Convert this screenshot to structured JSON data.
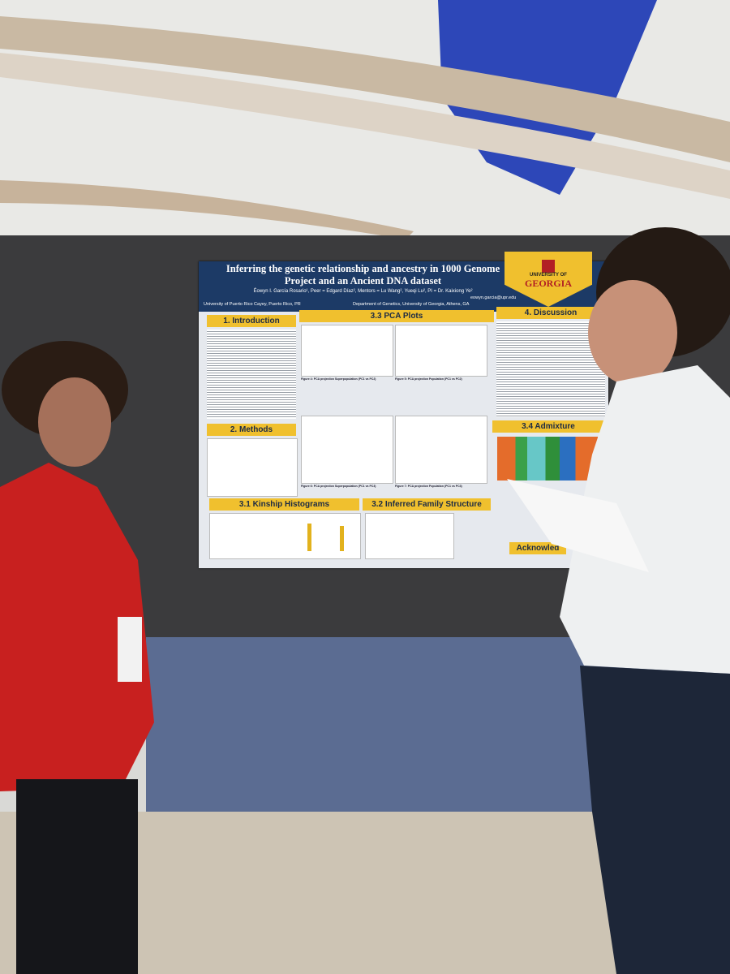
{
  "poster": {
    "title": "Inferring the genetic relationship and ancestry in 1000 Genome Project and an Ancient DNA dataset",
    "authors": "Éowyn I. García Rosario¹, Peer = Edgard Díaz², Mentors = Lu Wang², Yueqi Lu², PI = Dr. Kaixiong Ye²",
    "affiliation_left": "University of Puerto Rico Cayey, Puerto Rico, PR",
    "affiliation_right": "Department of Genetics, University of Georgia, Athens, GA",
    "email": "eowyn.garcia@upr.edu",
    "logo_top": "UNIVERSITY OF",
    "logo_bottom": "GEORGIA",
    "sections": {
      "introduction": "1. Introduction",
      "methods": "2. Methods",
      "kinship": "3.1 Kinship Histograms",
      "family": "3.2 Inferred Family Structure",
      "pca": "3.3 PCA Plots",
      "admixture": "3.4 Admixture",
      "discussion": "4. Discussion",
      "acknowledgements": "Acknowled"
    },
    "figures": [
      "Figure 4: PCA projection Superpopulation (PC1 vs PC2)",
      "Figure 5: PCA projection Population (PC1 vs PC2)",
      "Figure 6: PCA projection Superpopulation (PC1 vs PC3)",
      "Figure 7: PCA projection Population (PC1 vs PC3)"
    ]
  }
}
